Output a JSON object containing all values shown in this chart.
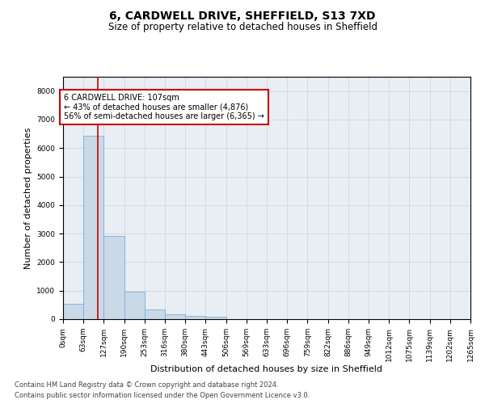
{
  "title_line1": "6, CARDWELL DRIVE, SHEFFIELD, S13 7XD",
  "title_line2": "Size of property relative to detached houses in Sheffield",
  "xlabel": "Distribution of detached houses by size in Sheffield",
  "ylabel": "Number of detached properties",
  "bar_values": [
    550,
    6430,
    2920,
    970,
    340,
    160,
    110,
    80,
    0,
    0,
    0,
    0,
    0,
    0,
    0,
    0,
    0,
    0,
    0,
    0
  ],
  "bin_labels": [
    "0sqm",
    "63sqm",
    "127sqm",
    "190sqm",
    "253sqm",
    "316sqm",
    "380sqm",
    "443sqm",
    "506sqm",
    "569sqm",
    "633sqm",
    "696sqm",
    "759sqm",
    "822sqm",
    "886sqm",
    "949sqm",
    "1012sqm",
    "1075sqm",
    "1139sqm",
    "1202sqm",
    "1265sqm"
  ],
  "bar_color": "#c9d9e8",
  "bar_edge_color": "#7bafd4",
  "highlight_line_color": "#cc0000",
  "property_size": 107,
  "annotation_text_line1": "6 CARDWELL DRIVE: 107sqm",
  "annotation_text_line2": "← 43% of detached houses are smaller (4,876)",
  "annotation_text_line3": "56% of semi-detached houses are larger (6,365) →",
  "annotation_box_color": "#ffffff",
  "annotation_box_edge_color": "#cc0000",
  "ylim": [
    0,
    8500
  ],
  "yticks": [
    0,
    1000,
    2000,
    3000,
    4000,
    5000,
    6000,
    7000,
    8000
  ],
  "grid_color": "#d0d8e0",
  "background_color": "#e8eef4",
  "footer_line1": "Contains HM Land Registry data © Crown copyright and database right 2024.",
  "footer_line2": "Contains public sector information licensed under the Open Government Licence v3.0.",
  "title_fontsize": 10,
  "subtitle_fontsize": 8.5,
  "axis_label_fontsize": 8,
  "tick_fontsize": 6.5,
  "annotation_fontsize": 7,
  "footer_fontsize": 6
}
